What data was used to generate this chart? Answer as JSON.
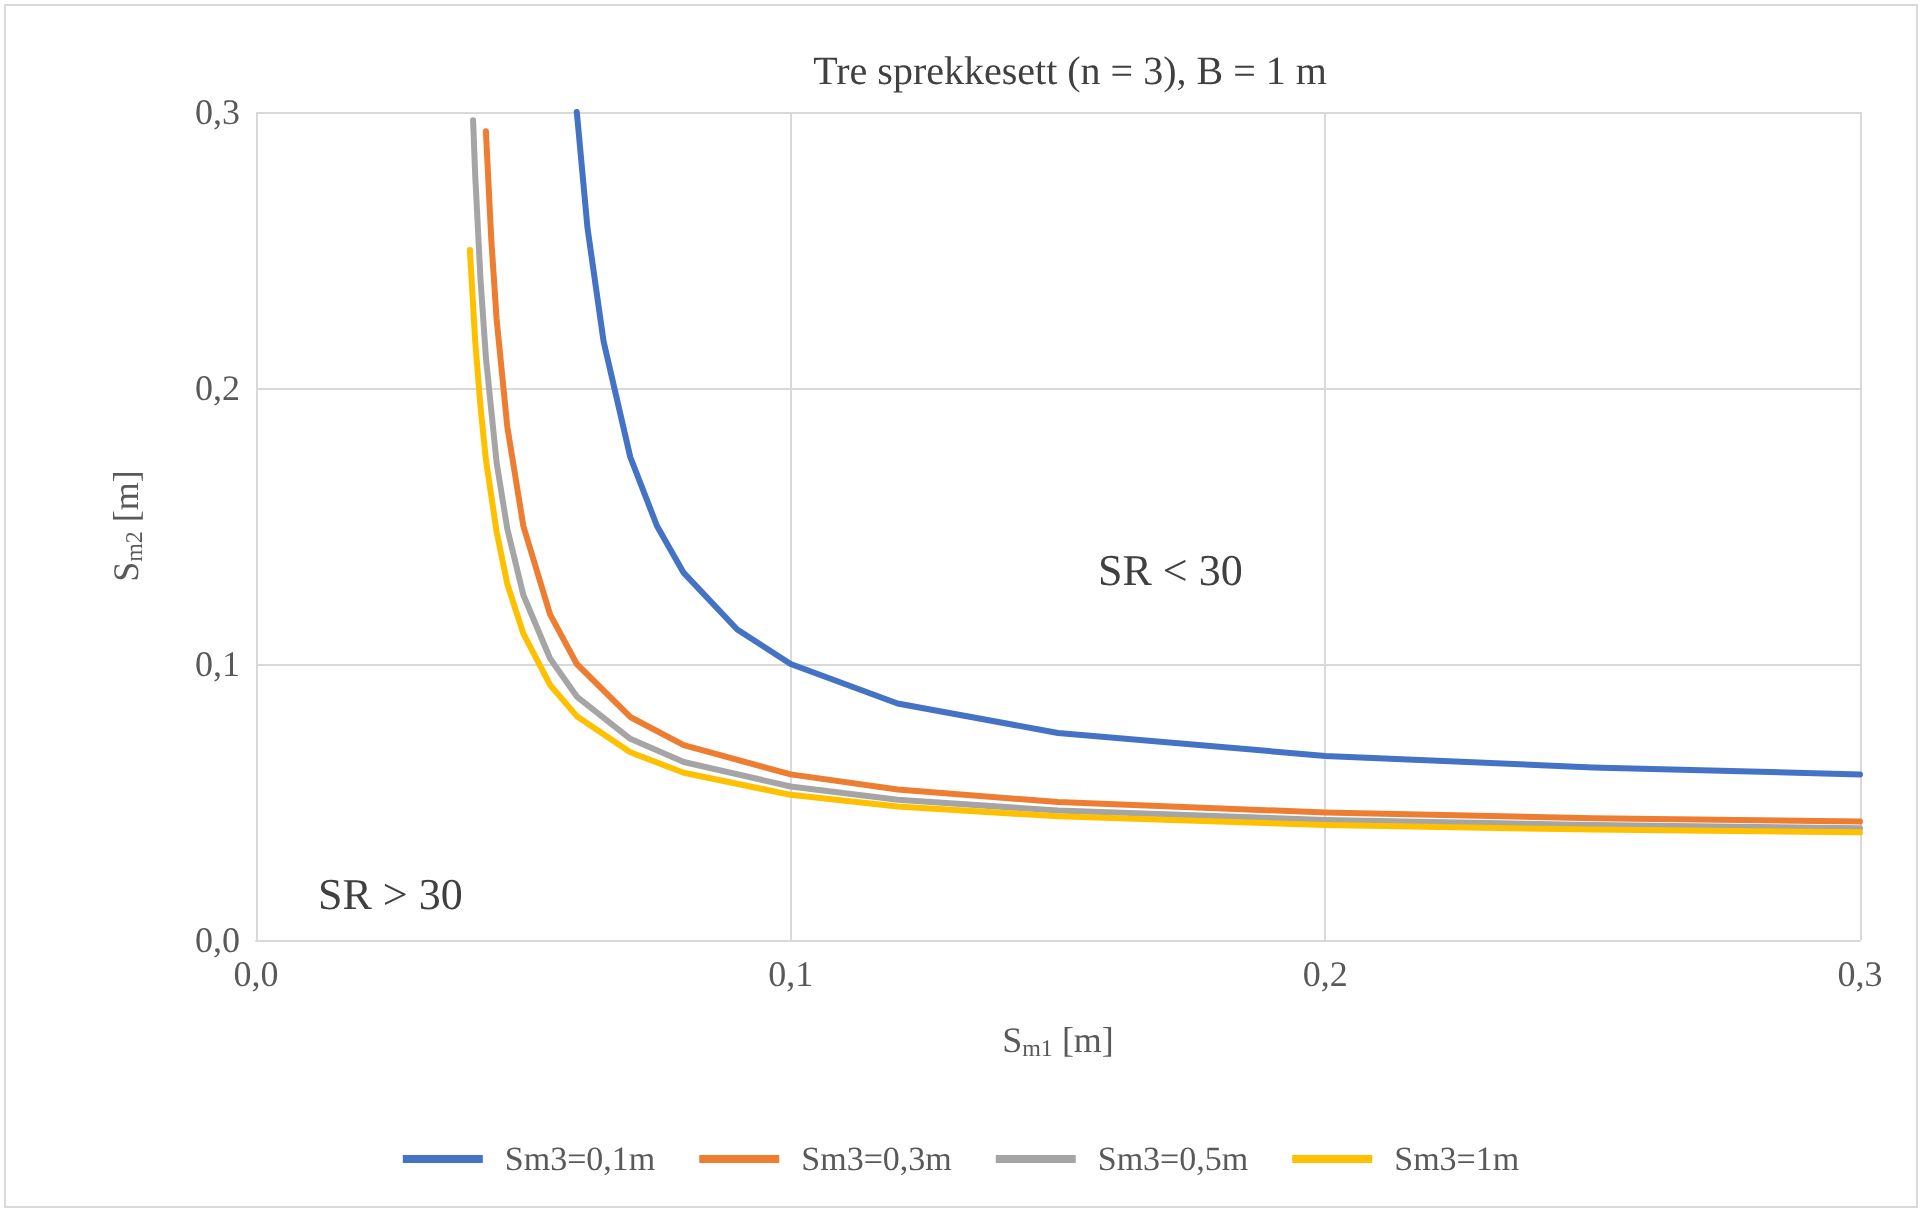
{
  "chart_data": {
    "type": "line",
    "title": "Tre sprekkesett (n = 3), B = 1 m",
    "xlabel": "S$_{m1}$ [m]",
    "ylabel": "S$_{m2}$ [m]",
    "xlim": [
      0,
      0.3
    ],
    "ylim": [
      0,
      0.3
    ],
    "xticks": [
      {
        "value": 0,
        "label": "0,0"
      },
      {
        "value": 0.1,
        "label": "0,1"
      },
      {
        "value": 0.2,
        "label": "0,2"
      },
      {
        "value": 0.3,
        "label": "0,3"
      }
    ],
    "yticks": [
      {
        "value": 0,
        "label": "0,0"
      },
      {
        "value": 0.1,
        "label": "0,1"
      },
      {
        "value": 0.2,
        "label": "0,2"
      },
      {
        "value": 0.3,
        "label": "0,3"
      }
    ],
    "grid": true,
    "legend": "bottom",
    "marker": "none",
    "line_style": "solid",
    "annotations": [
      "SR < 30",
      "SR > 30"
    ],
    "series": [
      {
        "name": "Sm3=0,1m",
        "color": "#4472c4",
        "x": [
          0.06,
          0.062,
          0.065,
          0.07,
          0.075,
          0.08,
          0.09,
          0.1,
          0.12,
          0.15,
          0.2,
          0.25,
          0.3
        ],
        "values": [
          0.3,
          0.258,
          0.217,
          0.175,
          0.15,
          0.133,
          0.1125,
          0.1,
          0.0857,
          0.075,
          0.0667,
          0.0625,
          0.06
        ]
      },
      {
        "name": "Sm3=0,3m",
        "color": "#ed7d31",
        "x": [
          0.043,
          0.044,
          0.045,
          0.047,
          0.05,
          0.055,
          0.06,
          0.07,
          0.08,
          0.1,
          0.12,
          0.15,
          0.2,
          0.25,
          0.3
        ],
        "values": [
          0.293,
          0.254,
          0.225,
          0.186,
          0.15,
          0.118,
          0.1,
          0.0808,
          0.0706,
          0.06,
          0.0545,
          0.05,
          0.0462,
          0.0441,
          0.0429
        ]
      },
      {
        "name": "Sm3=0,5m",
        "color": "#a5a5a5",
        "x": [
          0.0406,
          0.041,
          0.042,
          0.043,
          0.045,
          0.047,
          0.05,
          0.055,
          0.06,
          0.07,
          0.08,
          0.1,
          0.12,
          0.15,
          0.2,
          0.25,
          0.3
        ],
        "values": [
          0.297,
          0.277,
          0.239,
          0.211,
          0.173,
          0.149,
          0.125,
          0.102,
          0.0882,
          0.0729,
          0.0645,
          0.0556,
          0.0508,
          0.0469,
          0.0435,
          0.0417,
          0.0405
        ]
      },
      {
        "name": "Sm3=1m",
        "color": "#ffc000",
        "x": [
          0.04,
          0.041,
          0.042,
          0.043,
          0.045,
          0.047,
          0.05,
          0.055,
          0.06,
          0.07,
          0.08,
          0.1,
          0.12,
          0.15,
          0.2,
          0.25,
          0.3
        ],
        "values": [
          0.25,
          0.217,
          0.193,
          0.174,
          0.148,
          0.129,
          0.111,
          0.0924,
          0.0811,
          0.068,
          0.0606,
          0.0526,
          0.0484,
          0.0448,
          0.0417,
          0.04,
          0.039
        ]
      }
    ]
  }
}
